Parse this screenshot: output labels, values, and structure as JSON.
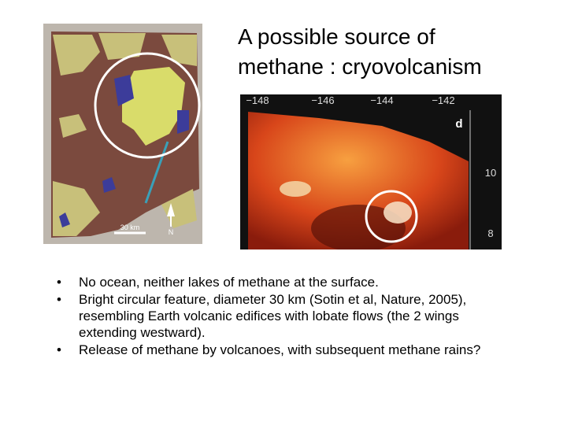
{
  "title": {
    "lines": [
      "A possible source of",
      "methane : cryovolcanism"
    ]
  },
  "map_image": {
    "scale_label": "30 km",
    "north_label": "N"
  },
  "ir_image": {
    "top_labels": [
      "−148",
      "−146",
      "−144",
      "−142"
    ],
    "panel_label": "d",
    "side_labels": [
      "10",
      "8"
    ]
  },
  "bullets": [
    "No ocean, neither lakes of methane at the surface.",
    "Bright circular feature, diameter 30 km (Sotin et al, Nature, 2005), resembling Earth volcanic edifices with lobate flows (the 2 wings extending westward).",
    "Release of methane by volcanoes, with subsequent methane rains?"
  ]
}
